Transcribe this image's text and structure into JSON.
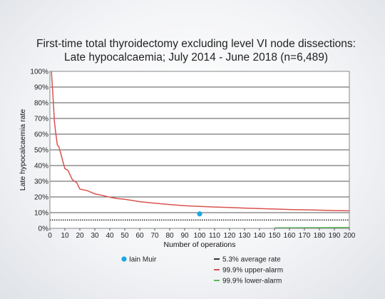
{
  "chart_data": {
    "type": "line",
    "title": "First-time total thyroidectomy excluding level VI node dissections:",
    "subtitle": "Late hypocalcaemia; July 2014 - June 2018 (n=6,489)",
    "xlabel": "Number of operations",
    "ylabel": "Late hypocalcaemia rate",
    "xlim": [
      0,
      200
    ],
    "ylim": [
      0,
      100
    ],
    "x_ticks": [
      0,
      10,
      20,
      30,
      40,
      50,
      60,
      70,
      80,
      90,
      100,
      110,
      120,
      130,
      140,
      150,
      160,
      170,
      180,
      190,
      200
    ],
    "y_ticks": [
      0,
      10,
      20,
      30,
      40,
      50,
      60,
      70,
      80,
      90,
      100
    ],
    "y_tick_labels": [
      "0%",
      "10%",
      "20%",
      "30%",
      "40%",
      "50%",
      "60%",
      "70%",
      "80%",
      "90%",
      "100%"
    ],
    "grid": true,
    "legend_position": "bottom",
    "points": [
      {
        "name": "Iain Muir",
        "x": 100,
        "y": 9.2,
        "color": "#1ba8e0"
      }
    ],
    "series": [
      {
        "name": "5.3% average rate",
        "color": "#333333",
        "style": "dotted",
        "x": [
          0,
          200
        ],
        "y": [
          5.3,
          5.3
        ]
      },
      {
        "name": "99.9% upper-alarm",
        "color": "#d9534f",
        "style": "solid",
        "x": [
          1,
          2,
          3,
          4,
          5,
          6,
          8,
          10,
          12,
          15,
          18,
          20,
          25,
          30,
          35,
          40,
          45,
          50,
          60,
          70,
          80,
          90,
          100,
          110,
          120,
          130,
          140,
          150,
          160,
          170,
          180,
          190,
          200
        ],
        "y": [
          100,
          85,
          68,
          60,
          53,
          52,
          45,
          38,
          37,
          31,
          29,
          25,
          24,
          22,
          21,
          19.8,
          19,
          18.5,
          17,
          16,
          15.2,
          14.4,
          14,
          13.6,
          13.3,
          12.9,
          12.6,
          12.3,
          12.0,
          11.8,
          11.6,
          11.3,
          11.2
        ]
      },
      {
        "name": "99.9% lower-alarm",
        "color": "#5cb85c",
        "style": "solid",
        "x": [
          150,
          200
        ],
        "y": [
          0.3,
          0.6
        ]
      }
    ]
  }
}
